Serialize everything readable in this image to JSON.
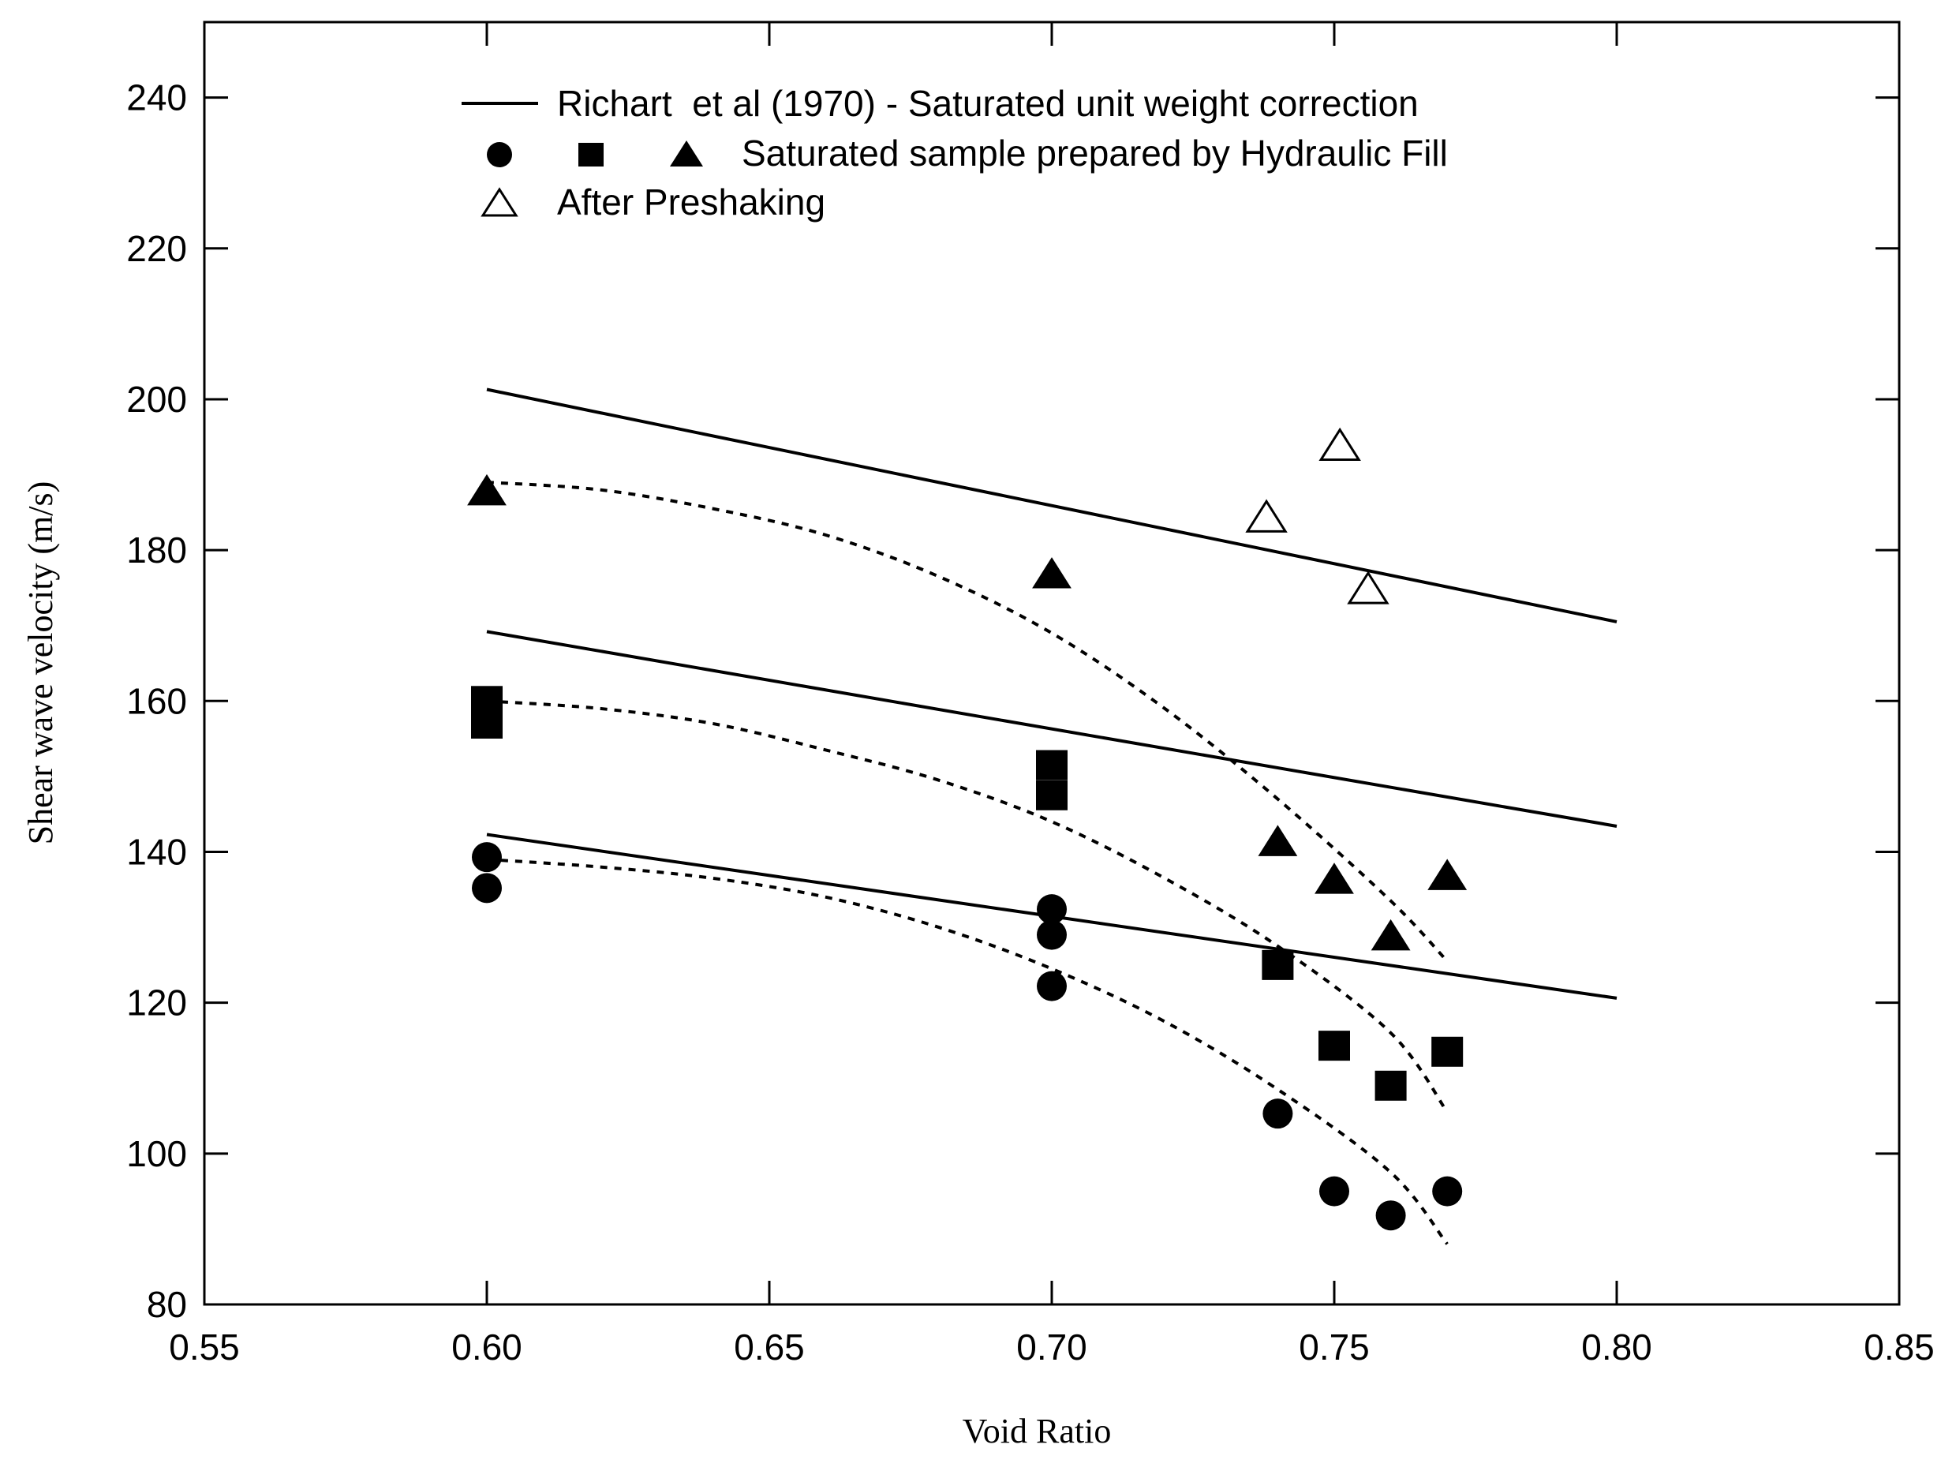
{
  "chart_data": {
    "type": "scatter",
    "title": "",
    "xlabel": "Void Ratio",
    "ylabel": "Shear wave velocity (m/s)",
    "xlim": [
      0.55,
      0.85
    ],
    "ylim": [
      80,
      250
    ],
    "xticks": [
      0.55,
      0.6,
      0.65,
      0.7,
      0.75,
      0.8,
      0.85
    ],
    "xtick_labels": [
      "0.55",
      "0.60",
      "0.65",
      "0.70",
      "0.75",
      "0.80",
      "0.85"
    ],
    "yticks": [
      80,
      100,
      120,
      140,
      160,
      180,
      200,
      220,
      240
    ],
    "ytick_labels": [
      "80",
      "100",
      "120",
      "140",
      "160",
      "180",
      "200",
      "220",
      "240"
    ],
    "grid": false,
    "legend": {
      "position": "top-left",
      "line_label": "Richart  et al (1970) - Saturated unit weight correction",
      "filled_label": "Saturated sample prepared by Hydraulic Fill",
      "open_label": "After Preshaking"
    },
    "richart_lines": [
      {
        "name": "Richart upper",
        "x": [
          0.6,
          0.8
        ],
        "y": [
          201.3,
          170.5
        ]
      },
      {
        "name": "Richart middle",
        "x": [
          0.6,
          0.8
        ],
        "y": [
          169.2,
          143.4
        ]
      },
      {
        "name": "Richart lower",
        "x": [
          0.6,
          0.8
        ],
        "y": [
          142.3,
          120.6
        ]
      }
    ],
    "trend_curves": [
      {
        "name": "Trend triangles",
        "x": [
          0.6,
          0.62,
          0.64,
          0.66,
          0.68,
          0.7,
          0.72,
          0.74,
          0.76,
          0.77
        ],
        "y": [
          189.0,
          188.0,
          185.5,
          182.0,
          176.5,
          169.0,
          159.0,
          147.0,
          133.5,
          125.5
        ]
      },
      {
        "name": "Trend squares",
        "x": [
          0.6,
          0.62,
          0.64,
          0.66,
          0.68,
          0.7,
          0.72,
          0.74,
          0.76,
          0.77
        ],
        "y": [
          160.0,
          159.0,
          157.0,
          153.5,
          149.5,
          144.0,
          136.5,
          127.5,
          116.0,
          105.5
        ]
      },
      {
        "name": "Trend circles",
        "x": [
          0.6,
          0.62,
          0.64,
          0.66,
          0.68,
          0.7,
          0.72,
          0.74,
          0.76,
          0.77
        ],
        "y": [
          139.0,
          138.0,
          136.5,
          134.0,
          130.0,
          124.5,
          117.5,
          108.5,
          97.5,
          88.0
        ]
      }
    ],
    "series": [
      {
        "name": "Circles",
        "marker": "circle",
        "filled": true,
        "x": [
          0.6,
          0.6,
          0.7,
          0.7,
          0.7,
          0.74,
          0.75,
          0.76,
          0.77
        ],
        "y": [
          139.3,
          135.2,
          132.4,
          129.0,
          122.2,
          105.3,
          95.0,
          91.8,
          95.0
        ]
      },
      {
        "name": "Squares",
        "marker": "square",
        "filled": true,
        "x": [
          0.6,
          0.6,
          0.7,
          0.7,
          0.74,
          0.75,
          0.76,
          0.77
        ],
        "y": [
          160.0,
          157.0,
          151.5,
          147.5,
          125.0,
          114.3,
          109.0,
          113.5
        ]
      },
      {
        "name": "Triangles",
        "marker": "triangle",
        "filled": true,
        "x": [
          0.6,
          0.7,
          0.74,
          0.75,
          0.76,
          0.77
        ],
        "y": [
          187.5,
          176.5,
          141.0,
          136.0,
          128.5,
          136.5
        ]
      },
      {
        "name": "After Preshaking",
        "marker": "triangle",
        "filled": false,
        "x": [
          0.738,
          0.751,
          0.756
        ],
        "y": [
          184.0,
          193.5,
          174.5
        ]
      }
    ]
  }
}
